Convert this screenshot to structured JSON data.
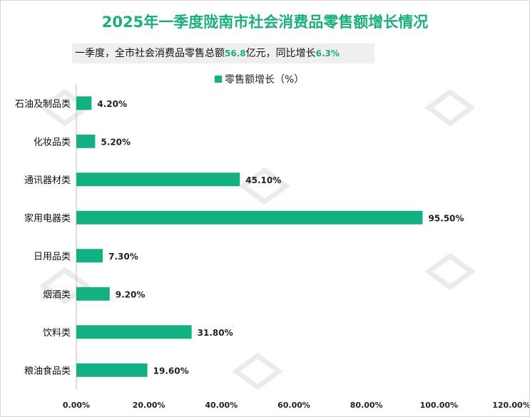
{
  "title": "2025年一季度陇南市社会消费品零售额增长情况",
  "summary": {
    "prefix": "一季度，全市社会消费品零售总额",
    "total_value": "56.8",
    "mid": "亿元，同比增长",
    "growth_value": "6.3%"
  },
  "colors": {
    "bar": "#13b083",
    "accent": "#1aae7d"
  },
  "chart_data": {
    "type": "bar",
    "orientation": "horizontal",
    "title": "2025年一季度陇南市社会消费品零售额增长情况",
    "categories": [
      "石油及制品类",
      "化妆品类",
      "通讯器材类",
      "家用电器类",
      "日用品类",
      "烟酒类",
      "饮料类",
      "粮油食品类"
    ],
    "series": [
      {
        "name": "零售额增长（%）",
        "values": [
          4.2,
          5.2,
          45.1,
          95.5,
          7.3,
          9.2,
          31.8,
          19.6
        ]
      }
    ],
    "value_labels": [
      "4.20%",
      "5.20%",
      "45.10%",
      "95.50%",
      "7.30%",
      "9.20%",
      "31.80%",
      "19.60%"
    ],
    "xlim": [
      0,
      120
    ],
    "xticks": [
      0,
      20,
      40,
      60,
      80,
      100,
      120
    ],
    "xtick_labels": [
      "0.00%",
      "20.00%",
      "40.00%",
      "60.00%",
      "80.00%",
      "100.00%",
      "120.00%"
    ],
    "grid": false,
    "legend_position": "top-center"
  }
}
